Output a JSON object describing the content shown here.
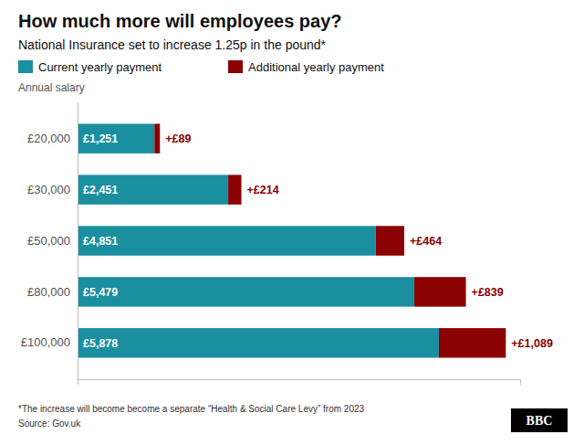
{
  "chart_data": {
    "type": "bar",
    "orientation": "horizontal",
    "stacked": true,
    "title": "How much more will employees pay?",
    "subtitle": "National Insurance set to increase 1.25p in the pound*",
    "ylabel": "Annual salary",
    "categories": [
      "£20,000",
      "£30,000",
      "£50,000",
      "£80,000",
      "£100,000"
    ],
    "series": [
      {
        "name": "Current yearly payment",
        "color": "#1a8fa0",
        "values": [
          1251,
          2451,
          4851,
          5479,
          5878
        ],
        "value_labels": [
          "£1,251",
          "£2,451",
          "£4,851",
          "£5,479",
          "£5,878"
        ]
      },
      {
        "name": "Additional yearly payment",
        "color": "#8b0000",
        "values": [
          89,
          214,
          464,
          839,
          1089
        ],
        "value_labels": [
          "+£89",
          "+£214",
          "+£464",
          "+£839",
          "+£1,089"
        ]
      }
    ],
    "xlim": [
      0,
      7200
    ],
    "data_labels": true,
    "tick_labels": "y",
    "grid": false,
    "legend": "top",
    "annotations": [
      "*The increase will become become a separate “Health & Social Care Levy” from 2023",
      "Source: Gov.uk",
      "BBC"
    ]
  }
}
